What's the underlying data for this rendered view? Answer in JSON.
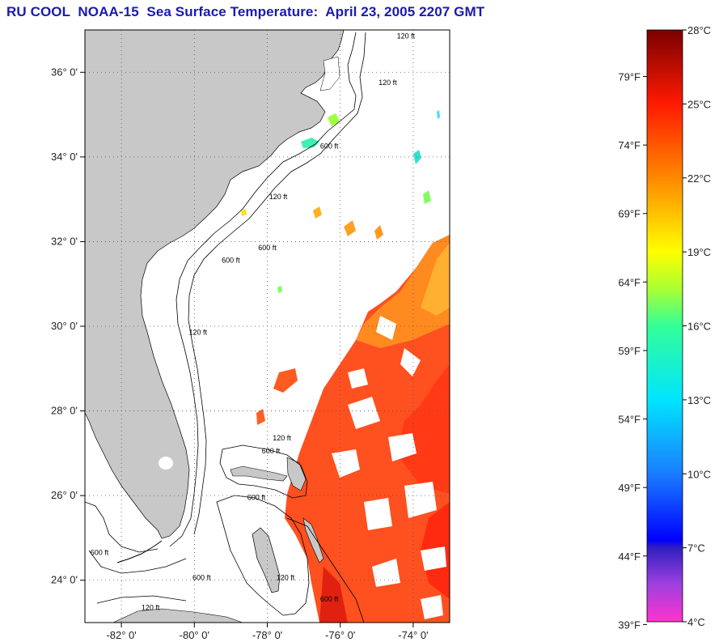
{
  "title": "RU COOL  NOAA-15  Sea Surface Temperature:  April 23, 2005 2207 GMT",
  "map": {
    "lon_range": [
      -83,
      -73
    ],
    "lat_range": [
      23,
      37
    ],
    "lat_ticks": [
      {
        "value": 36,
        "label": "36° 0'"
      },
      {
        "value": 34,
        "label": "34° 0'"
      },
      {
        "value": 32,
        "label": "32° 0'"
      },
      {
        "value": 30,
        "label": "30° 0'"
      },
      {
        "value": 28,
        "label": "28° 0'"
      },
      {
        "value": 26,
        "label": "26° 0'"
      },
      {
        "value": 24,
        "label": "24° 0'"
      }
    ],
    "lon_ticks": [
      {
        "value": -82,
        "label": "-82° 0'"
      },
      {
        "value": -80,
        "label": "-80° 0'"
      },
      {
        "value": -78,
        "label": "-78° 0'"
      },
      {
        "value": -76,
        "label": "-76° 0'"
      },
      {
        "value": -74,
        "label": "-74° 0'"
      }
    ],
    "contour_labels": [
      {
        "text": "120 ft",
        "lon": -74.2,
        "lat": 36.8
      },
      {
        "text": "120 ft",
        "lon": -74.7,
        "lat": 35.7
      },
      {
        "text": "600 ft",
        "lon": -76.3,
        "lat": 34.2
      },
      {
        "text": "120 ft",
        "lon": -77.7,
        "lat": 33.0
      },
      {
        "text": "600 ft",
        "lon": -79.0,
        "lat": 31.5
      },
      {
        "text": "600 ft",
        "lon": -78.0,
        "lat": 31.8
      },
      {
        "text": "120 ft",
        "lon": -79.9,
        "lat": 29.8
      },
      {
        "text": "120 ft",
        "lon": -77.6,
        "lat": 27.3
      },
      {
        "text": "600 ft",
        "lon": -77.9,
        "lat": 27.0
      },
      {
        "text": "600 ft",
        "lon": -78.3,
        "lat": 25.9
      },
      {
        "text": "600 ft",
        "lon": -82.6,
        "lat": 24.6
      },
      {
        "text": "120 ft",
        "lon": -77.5,
        "lat": 24.0
      },
      {
        "text": "600 ft",
        "lon": -79.8,
        "lat": 24.0
      },
      {
        "text": "600 ft",
        "lon": -76.3,
        "lat": 23.5
      },
      {
        "text": "120 ft",
        "lon": -81.2,
        "lat": 23.3
      }
    ],
    "colors": {
      "land": "#c8c8c8",
      "ocean_missing": "#ffffff"
    }
  },
  "colorbar": {
    "fahrenheit_ticks": [
      {
        "value": 39,
        "label": "39°F"
      },
      {
        "value": 44,
        "label": "44°F"
      },
      {
        "value": 49,
        "label": "49°F"
      },
      {
        "value": 54,
        "label": "54°F"
      },
      {
        "value": 59,
        "label": "59°F"
      },
      {
        "value": 64,
        "label": "64°F"
      },
      {
        "value": 69,
        "label": "69°F"
      },
      {
        "value": 74,
        "label": "74°F"
      },
      {
        "value": 79,
        "label": "79°F"
      }
    ],
    "celsius_ticks": [
      {
        "value": 4,
        "label": "4°C"
      },
      {
        "value": 7,
        "label": "7°C"
      },
      {
        "value": 10,
        "label": "10°C"
      },
      {
        "value": 13,
        "label": "13°C"
      },
      {
        "value": 16,
        "label": "16°C"
      },
      {
        "value": 19,
        "label": "19°C"
      },
      {
        "value": 22,
        "label": "22°C"
      },
      {
        "value": 25,
        "label": "25°C"
      },
      {
        "value": 28,
        "label": "28°C"
      }
    ],
    "range_c": [
      4,
      28
    ],
    "gradient": [
      {
        "c": 4,
        "color": "#ff33cc"
      },
      {
        "c": 5.5,
        "color": "#a040e0"
      },
      {
        "c": 7,
        "color": "#3020c0"
      },
      {
        "c": 7.3,
        "color": "#0000ff"
      },
      {
        "c": 10,
        "color": "#1a7dff"
      },
      {
        "c": 13,
        "color": "#00e5ff"
      },
      {
        "c": 16,
        "color": "#33ff99"
      },
      {
        "c": 17.5,
        "color": "#aaff33"
      },
      {
        "c": 19,
        "color": "#ffff00"
      },
      {
        "c": 22,
        "color": "#ff8800"
      },
      {
        "c": 25,
        "color": "#ff1a00"
      },
      {
        "c": 28,
        "color": "#7a0000"
      }
    ]
  }
}
